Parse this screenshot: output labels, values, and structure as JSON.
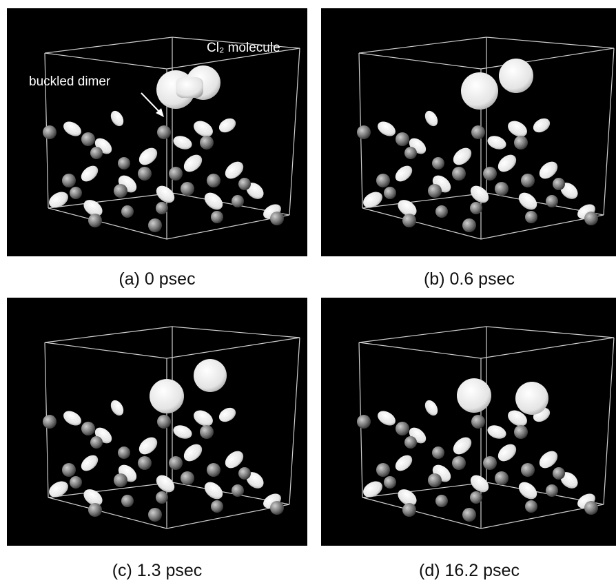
{
  "figure": {
    "panels": [
      {
        "caption": "(a) 0 psec"
      },
      {
        "caption": "(b) 0.6 psec"
      },
      {
        "caption": "(c) 1.3 psec"
      },
      {
        "caption": "(d) 16.2 psec"
      }
    ],
    "annotations": [
      "Cl₂ molecule",
      "buckled dimer"
    ]
  }
}
